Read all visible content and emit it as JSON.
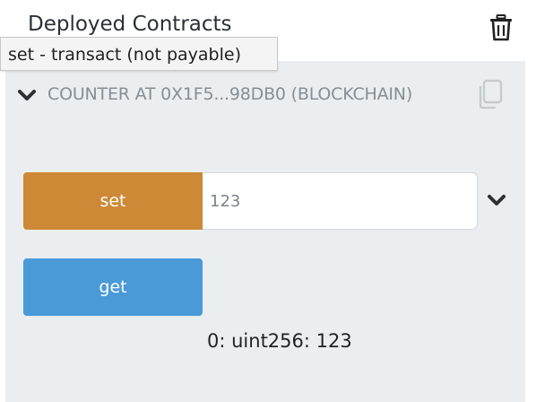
{
  "header": {
    "title": "Deployed Contracts",
    "trash_icon": "trash-icon"
  },
  "tooltip": {
    "text": "set - transact (not payable)"
  },
  "contract": {
    "title": "COUNTER AT 0X1F5...98DB0 (BLOCKCHAIN)",
    "expand_icon": "chevron-down-icon",
    "copy_icon": "copy-icon",
    "functions": {
      "set": {
        "label": "set",
        "input_value": "123",
        "color": "#cd8935",
        "expand_icon": "chevron-down-icon"
      },
      "get": {
        "label": "get",
        "color": "#4a9ad8",
        "result": "0: uint256: 123"
      }
    }
  },
  "colors": {
    "panel_bg": "#eaeef0",
    "transact_button": "#cd8935",
    "call_button": "#4a9ad8"
  }
}
